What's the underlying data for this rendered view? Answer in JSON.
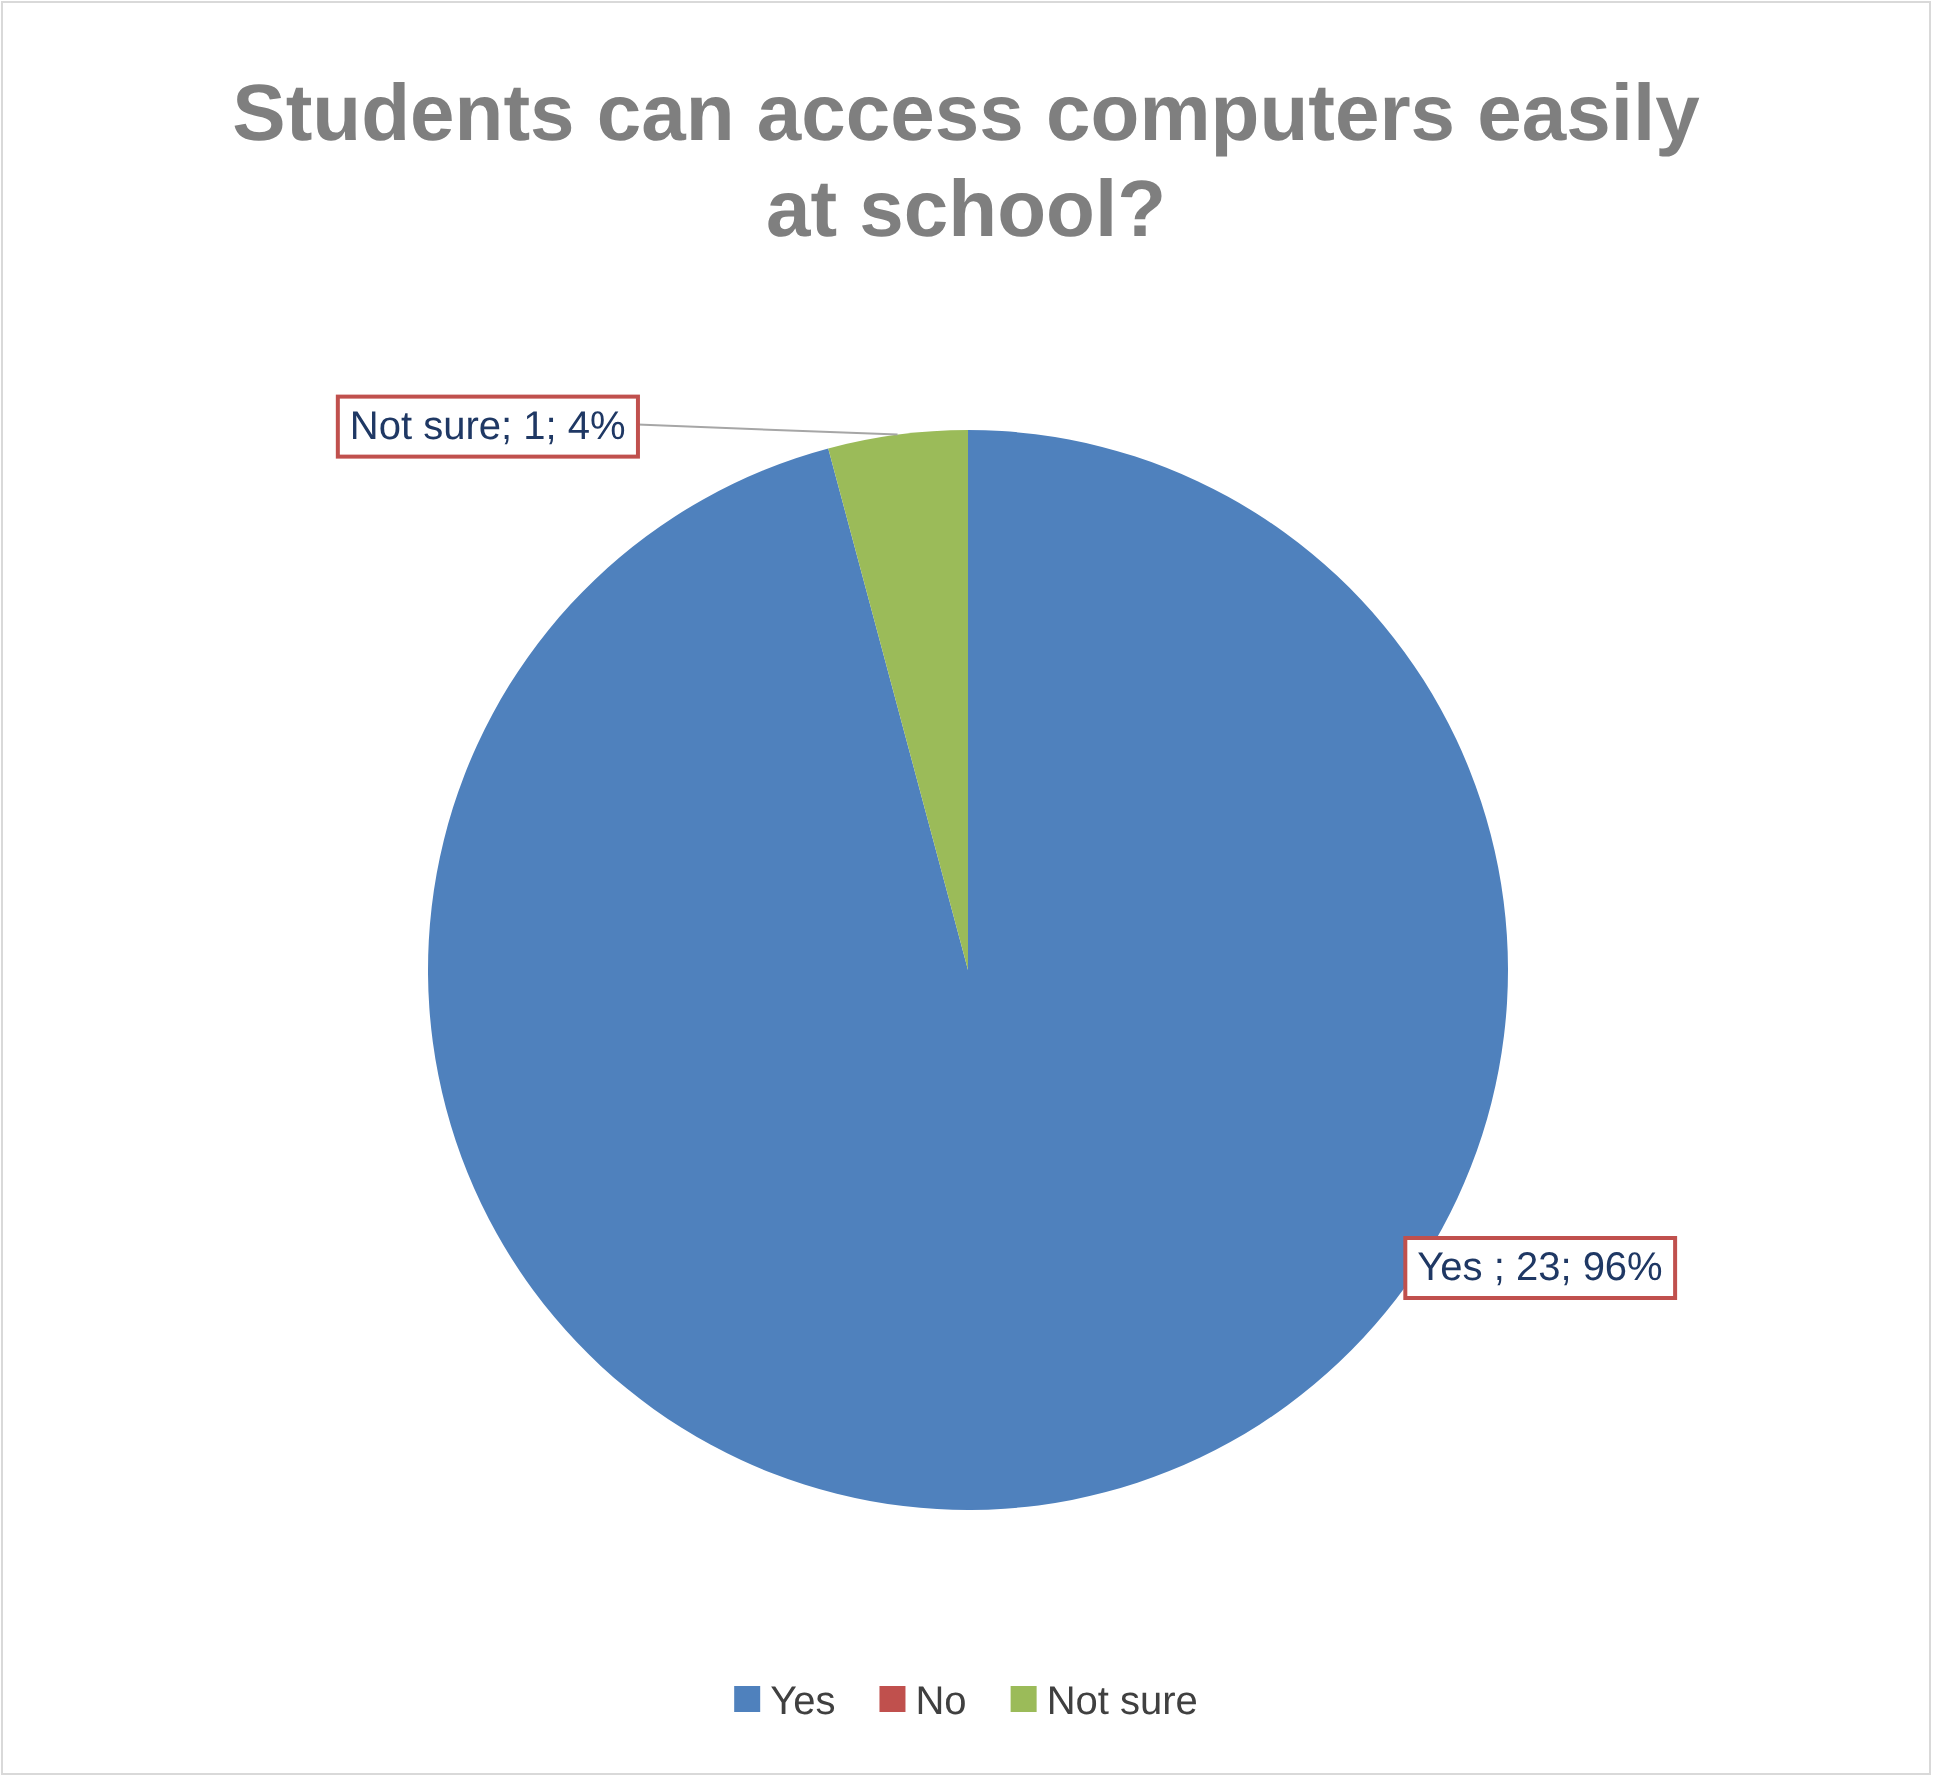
{
  "chart_data": {
    "type": "pie",
    "title": "Students can access computers easily at school?",
    "categories": [
      "Yes",
      "No",
      "Not sure"
    ],
    "values": [
      23,
      0,
      1
    ],
    "colors": [
      "#4f81bd",
      "#c0504d",
      "#9bbb59"
    ],
    "value_labels": [
      "Yes ; 23; 96%",
      null,
      "Not sure; 1; 4%"
    ],
    "legend": "bottom"
  }
}
